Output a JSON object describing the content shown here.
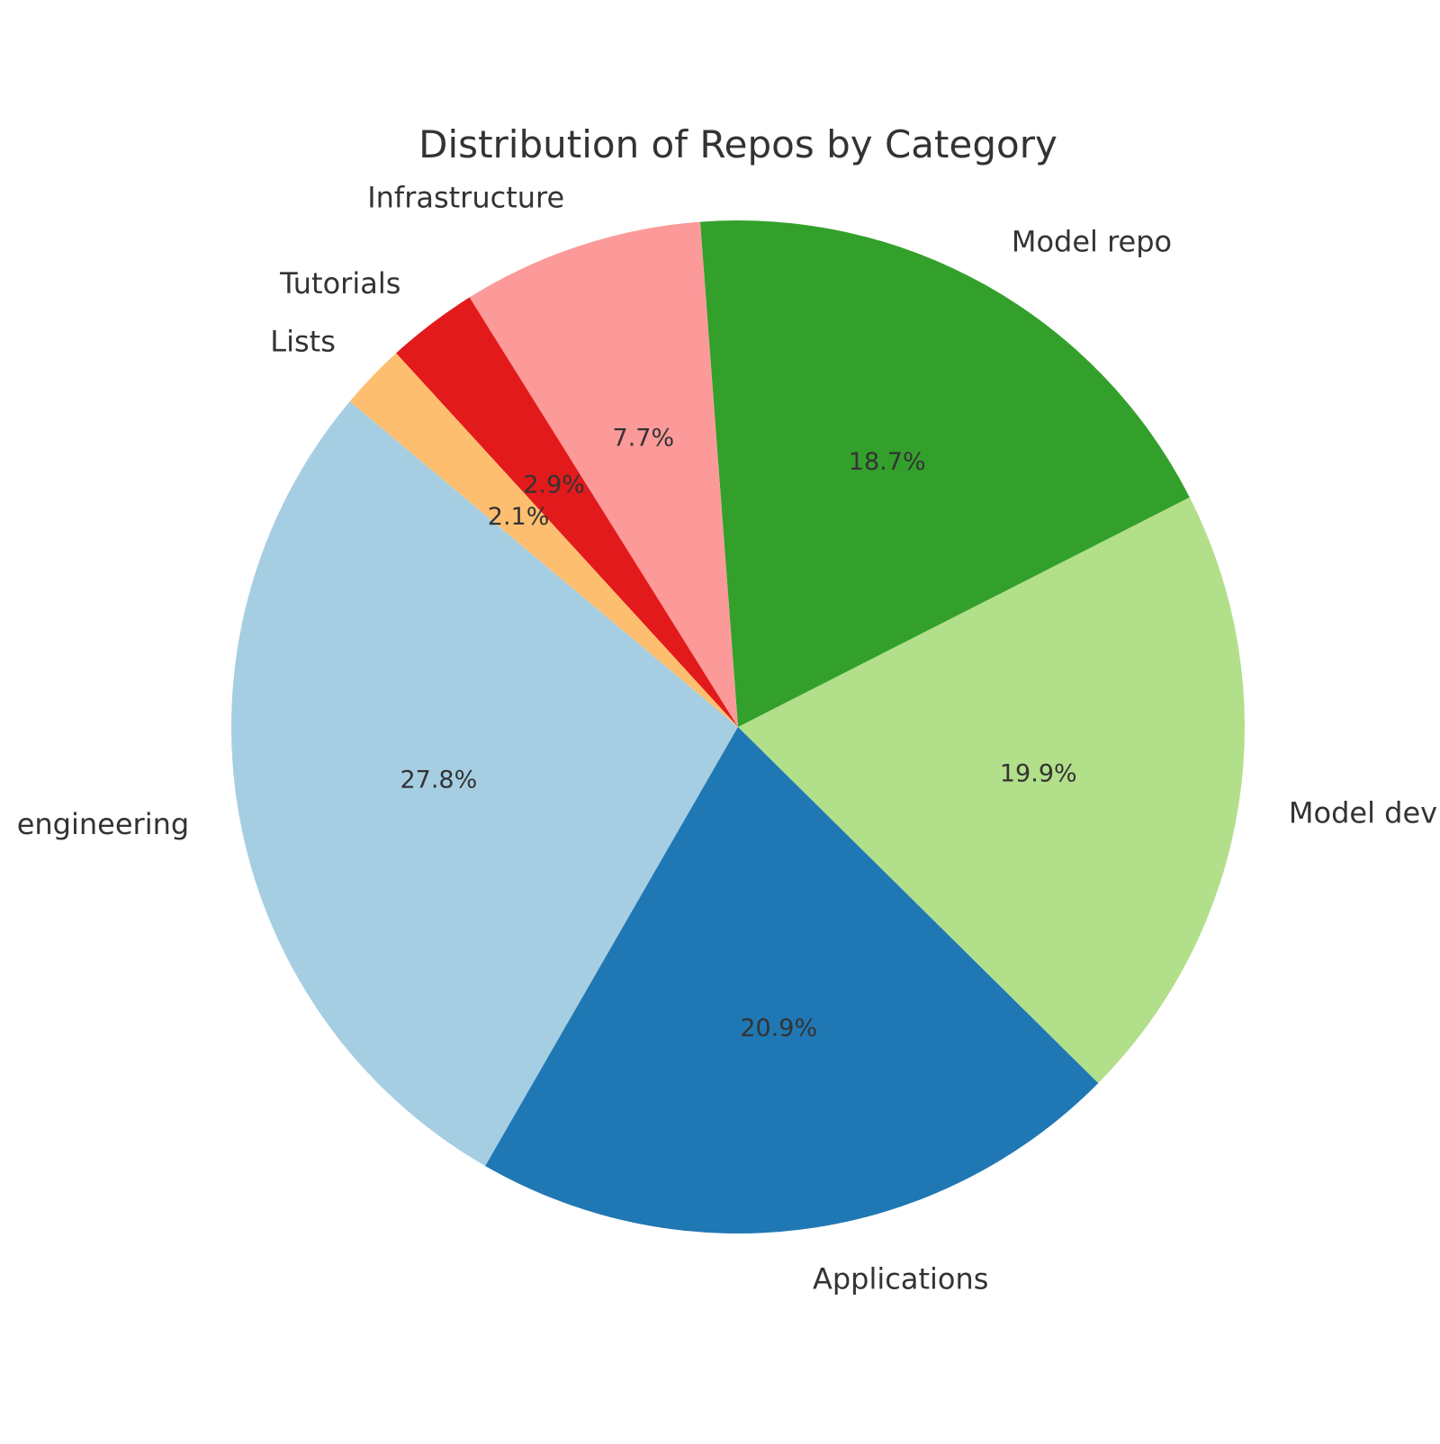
{
  "chart_data": {
    "type": "pie",
    "title": "Distribution of Repos by Category",
    "start_angle_deg": 140,
    "direction": "counterclockwise",
    "slices": [
      {
        "label": "engineering",
        "pct_label": "27.8%",
        "value": 27.8,
        "color": "#a6cee3"
      },
      {
        "label": "Applications",
        "pct_label": "20.9%",
        "value": 20.9,
        "color": "#1f78b4"
      },
      {
        "label": "Model dev",
        "pct_label": "19.9%",
        "value": 19.9,
        "color": "#b2df8a"
      },
      {
        "label": "Model repo",
        "pct_label": "18.7%",
        "value": 18.7,
        "color": "#33a02c"
      },
      {
        "label": "Infrastructure",
        "pct_label": "7.7%",
        "value": 7.7,
        "color": "#fb9a99"
      },
      {
        "label": "Tutorials",
        "pct_label": "2.9%",
        "value": 2.9,
        "color": "#e31a1c"
      },
      {
        "label": "Lists",
        "pct_label": "2.1%",
        "value": 2.1,
        "color": "#fdbf6f"
      }
    ]
  }
}
